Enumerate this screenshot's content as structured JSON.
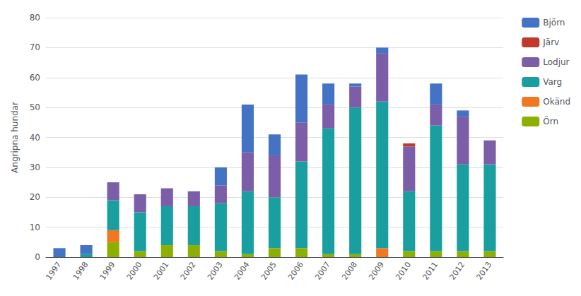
{
  "chart_data": {
    "type": "bar",
    "stacked": true,
    "ylabel": "Angripna hundar",
    "categories": [
      "1997",
      "1998",
      "1999",
      "2000",
      "2001",
      "2002",
      "2003",
      "2004",
      "2005",
      "2006",
      "2007",
      "2008",
      "2009",
      "2010",
      "2011",
      "2012",
      "2013"
    ],
    "series": [
      {
        "name": "Örn",
        "color": "#8db000",
        "values": [
          0,
          0,
          5,
          2,
          4,
          4,
          2,
          1,
          3,
          3,
          1,
          1,
          0,
          2,
          2,
          2,
          2
        ]
      },
      {
        "name": "Okänd",
        "color": "#f07820",
        "values": [
          0,
          0,
          4,
          0,
          0,
          0,
          0,
          0,
          0,
          0,
          0,
          0,
          3,
          0,
          0,
          0,
          0
        ]
      },
      {
        "name": "Varg",
        "color": "#1a9fa0",
        "values": [
          0,
          1,
          10,
          13,
          13,
          13,
          16,
          21,
          17,
          29,
          42,
          49,
          49,
          20,
          42,
          29,
          29
        ]
      },
      {
        "name": "Lodjur",
        "color": "#7b5ea7",
        "values": [
          0,
          0,
          6,
          6,
          6,
          5,
          6,
          13,
          14,
          13,
          8,
          7,
          16,
          15,
          7,
          16,
          8
        ]
      },
      {
        "name": "Järv",
        "color": "#c0392b",
        "values": [
          0,
          0,
          0,
          0,
          0,
          0,
          0,
          0,
          0,
          0,
          0,
          0,
          0,
          1,
          0,
          0,
          0
        ]
      },
      {
        "name": "Björn",
        "color": "#4472c4",
        "values": [
          3,
          3,
          0,
          0,
          0,
          0,
          6,
          16,
          7,
          16,
          7,
          1,
          2,
          0,
          7,
          2,
          0
        ]
      }
    ],
    "ylim": [
      0,
      80
    ],
    "yticks": [
      0,
      10,
      20,
      30,
      40,
      50,
      60,
      70,
      80
    ],
    "grid": true,
    "legend": "right"
  }
}
